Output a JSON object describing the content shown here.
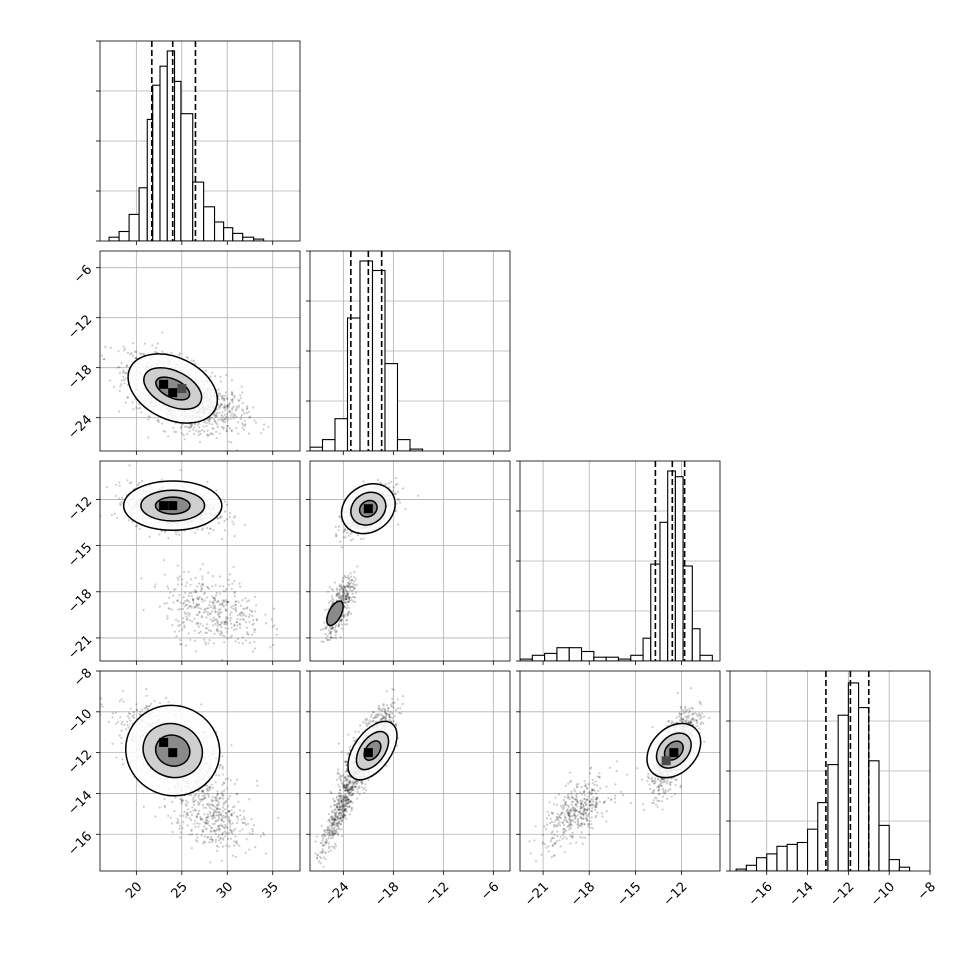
{
  "chart_data": {
    "type": "corner",
    "grid": true,
    "variables": [
      {
        "range": [
          16,
          38
        ],
        "ticks": [
          20,
          25,
          30,
          35
        ],
        "tick_labels": [
          "20",
          "25",
          "30",
          "35"
        ],
        "quantiles": [
          21.7,
          24.0,
          26.5
        ],
        "hist_peak": 100,
        "hist_bins": [
          {
            "x0": 17.0,
            "x1": 18.1,
            "count": 2
          },
          {
            "x0": 18.1,
            "x1": 19.2,
            "count": 5
          },
          {
            "x0": 19.2,
            "x1": 20.3,
            "count": 14
          },
          {
            "x0": 20.3,
            "x1": 21.2,
            "count": 28
          },
          {
            "x0": 21.2,
            "x1": 21.8,
            "count": 64
          },
          {
            "x0": 21.8,
            "x1": 22.6,
            "count": 82
          },
          {
            "x0": 22.6,
            "x1": 23.4,
            "count": 92
          },
          {
            "x0": 23.4,
            "x1": 24.2,
            "count": 100
          },
          {
            "x0": 24.2,
            "x1": 24.9,
            "count": 84
          },
          {
            "x0": 24.9,
            "x1": 26.2,
            "count": 67
          },
          {
            "x0": 26.2,
            "x1": 27.4,
            "count": 31
          },
          {
            "x0": 27.4,
            "x1": 28.6,
            "count": 18
          },
          {
            "x0": 28.6,
            "x1": 29.6,
            "count": 10
          },
          {
            "x0": 29.6,
            "x1": 30.6,
            "count": 7
          },
          {
            "x0": 30.6,
            "x1": 31.7,
            "count": 4
          },
          {
            "x0": 31.7,
            "x1": 32.9,
            "count": 2
          },
          {
            "x0": 32.9,
            "x1": 34.0,
            "count": 1
          }
        ]
      },
      {
        "range": [
          -28,
          -4
        ],
        "ticks": [
          -24,
          -18,
          -12,
          -6
        ],
        "tick_labels": [
          "−24",
          "−18",
          "−12",
          "−6"
        ],
        "quantiles": [
          -23.1,
          -21.0,
          -19.4
        ],
        "hist_peak": 100,
        "hist_bins": [
          {
            "x0": -28.0,
            "x1": -26.5,
            "count": 2
          },
          {
            "x0": -26.5,
            "x1": -25.0,
            "count": 6
          },
          {
            "x0": -25.0,
            "x1": -23.5,
            "count": 17
          },
          {
            "x0": -23.5,
            "x1": -22.0,
            "count": 70
          },
          {
            "x0": -22.0,
            "x1": -20.5,
            "count": 100
          },
          {
            "x0": -20.5,
            "x1": -19.0,
            "count": 95
          },
          {
            "x0": -19.0,
            "x1": -17.5,
            "count": 46
          },
          {
            "x0": -17.5,
            "x1": -16.0,
            "count": 6
          },
          {
            "x0": -16.0,
            "x1": -14.5,
            "count": 1
          }
        ]
      },
      {
        "range": [
          -22.5,
          -9.5
        ],
        "ticks": [
          -21,
          -18,
          -15,
          -12
        ],
        "tick_labels": [
          "−21",
          "−18",
          "−15",
          "−12"
        ],
        "quantiles": [
          -13.7,
          -12.6,
          -11.8
        ],
        "hist_peak": 100,
        "hist_bins": [
          {
            "x0": -22.5,
            "x1": -21.7,
            "count": 1
          },
          {
            "x0": -21.7,
            "x1": -20.9,
            "count": 3
          },
          {
            "x0": -20.9,
            "x1": -20.1,
            "count": 4
          },
          {
            "x0": -20.1,
            "x1": -19.3,
            "count": 7
          },
          {
            "x0": -19.3,
            "x1": -18.5,
            "count": 7
          },
          {
            "x0": -18.5,
            "x1": -17.7,
            "count": 5
          },
          {
            "x0": -17.7,
            "x1": -16.9,
            "count": 2
          },
          {
            "x0": -16.9,
            "x1": -16.1,
            "count": 2
          },
          {
            "x0": -16.1,
            "x1": -15.3,
            "count": 1
          },
          {
            "x0": -15.3,
            "x1": -14.5,
            "count": 3
          },
          {
            "x0": -14.5,
            "x1": -14.0,
            "count": 12
          },
          {
            "x0": -14.0,
            "x1": -13.4,
            "count": 51
          },
          {
            "x0": -13.4,
            "x1": -12.9,
            "count": 73
          },
          {
            "x0": -12.9,
            "x1": -12.4,
            "count": 100
          },
          {
            "x0": -12.4,
            "x1": -11.9,
            "count": 97
          },
          {
            "x0": -11.9,
            "x1": -11.3,
            "count": 50
          },
          {
            "x0": -11.3,
            "x1": -10.8,
            "count": 17
          },
          {
            "x0": -10.8,
            "x1": -10.0,
            "count": 3
          }
        ]
      },
      {
        "range": [
          -17.8,
          -8
        ],
        "ticks": [
          -16,
          -14,
          -12,
          -10,
          -8
        ],
        "tick_labels": [
          "−16",
          "−14",
          "−12",
          "−10",
          "−8"
        ],
        "quantiles": [
          -13.1,
          -11.9,
          -11.0
        ],
        "hist_peak": 100,
        "hist_bins": [
          {
            "x0": -17.5,
            "x1": -17.0,
            "count": 1
          },
          {
            "x0": -17.0,
            "x1": -16.5,
            "count": 3
          },
          {
            "x0": -16.5,
            "x1": -16.0,
            "count": 7
          },
          {
            "x0": -16.0,
            "x1": -15.5,
            "count": 9
          },
          {
            "x0": -15.5,
            "x1": -15.0,
            "count": 13
          },
          {
            "x0": -15.0,
            "x1": -14.5,
            "count": 14
          },
          {
            "x0": -14.5,
            "x1": -14.0,
            "count": 15
          },
          {
            "x0": -14.0,
            "x1": -13.5,
            "count": 22
          },
          {
            "x0": -13.5,
            "x1": -13.0,
            "count": 36
          },
          {
            "x0": -13.0,
            "x1": -12.5,
            "count": 56
          },
          {
            "x0": -12.5,
            "x1": -12.0,
            "count": 82
          },
          {
            "x0": -12.0,
            "x1": -11.5,
            "count": 99
          },
          {
            "x0": -11.5,
            "x1": -11.0,
            "count": 86
          },
          {
            "x0": -11.0,
            "x1": -10.5,
            "count": 58
          },
          {
            "x0": -10.5,
            "x1": -10.0,
            "count": 24
          },
          {
            "x0": -10.0,
            "x1": -9.5,
            "count": 6
          },
          {
            "x0": -9.5,
            "x1": -9.0,
            "count": 2
          }
        ]
      }
    ],
    "pairs": [
      {
        "row": 1,
        "col": 0,
        "clusters": [
          {
            "n": 1000,
            "mean": [
              24.0,
              -20.8
            ],
            "sd": [
              2.6,
              2.3
            ],
            "corr": -0.5
          },
          {
            "n": 400,
            "mean": [
              28.0,
              -22.6
            ],
            "sd": [
              2.2,
              1.6
            ],
            "corr": -0.4
          }
        ],
        "contours": [
          {
            "center": [
              24.0,
              -20.5
            ],
            "rx": 5.2,
            "ry": 3.7,
            "angle": -0.45
          },
          {
            "center": [
              24.0,
              -20.5
            ],
            "rx": 3.4,
            "ry": 2.1,
            "angle": -0.45
          },
          {
            "center": [
              24.0,
              -20.5
            ],
            "rx": 2.0,
            "ry": 1.1,
            "angle": -0.45
          }
        ],
        "peaks": [
          {
            "x": 23.0,
            "y": -20.0,
            "level": 3
          },
          {
            "x": 24.0,
            "y": -21.0,
            "level": 3
          },
          {
            "x": 25.0,
            "y": -20.5,
            "level": 2
          }
        ]
      },
      {
        "row": 2,
        "col": 0,
        "clusters": [
          {
            "n": 1000,
            "mean": [
              24.0,
              -12.5
            ],
            "sd": [
              2.4,
              0.7
            ],
            "corr": -0.2
          },
          {
            "n": 400,
            "mean": [
              28.5,
              -19.2
            ],
            "sd": [
              2.7,
              1.2
            ],
            "corr": -0.3
          }
        ],
        "contours": [
          {
            "center": [
              24.0,
              -12.4
            ],
            "rx": 5.4,
            "ry": 1.6,
            "angle": 0
          },
          {
            "center": [
              24.0,
              -12.4
            ],
            "rx": 3.5,
            "ry": 1.0,
            "angle": 0
          },
          {
            "center": [
              24.0,
              -12.4
            ],
            "rx": 1.9,
            "ry": 0.55,
            "angle": 0
          }
        ],
        "peaks": [
          {
            "x": 23.0,
            "y": -12.4,
            "level": 3
          },
          {
            "x": 24.0,
            "y": -12.4,
            "level": 3
          }
        ]
      },
      {
        "row": 2,
        "col": 1,
        "clusters": [
          {
            "n": 1000,
            "mean": [
              -21.0,
              -12.7
            ],
            "sd": [
              1.4,
              0.7
            ],
            "corr": 0.5
          },
          {
            "n": 400,
            "mean": [
              -24.5,
              -19.0
            ],
            "sd": [
              0.9,
              1.0
            ],
            "corr": 0.7
          }
        ],
        "contours": [
          {
            "center": [
              -21.0,
              -12.6
            ],
            "rx": 3.4,
            "ry": 1.5,
            "angle": 0.6
          },
          {
            "center": [
              -21.0,
              -12.6
            ],
            "rx": 2.2,
            "ry": 1.0,
            "angle": 0.6
          },
          {
            "center": [
              -21.0,
              -12.6
            ],
            "rx": 1.1,
            "ry": 0.5,
            "angle": 0.6
          },
          {
            "center": [
              -25.0,
              -19.4
            ],
            "rx": 1.6,
            "ry": 0.4,
            "angle": 1.1
          }
        ],
        "peaks": [
          {
            "x": -21.0,
            "y": -12.6,
            "level": 3
          }
        ]
      },
      {
        "row": 3,
        "col": 0,
        "clusters": [
          {
            "n": 1000,
            "mean": [
              24.0,
              -11.9
            ],
            "sd": [
              2.6,
              1.0
            ],
            "corr": -0.5
          },
          {
            "n": 400,
            "mean": [
              28.0,
              -15.0
            ],
            "sd": [
              2.3,
              0.9
            ],
            "corr": -0.4
          }
        ],
        "contours": [
          {
            "center": [
              24.0,
              -11.9
            ],
            "rx": 5.2,
            "ry": 2.2,
            "angle": -0.35
          },
          {
            "center": [
              24.0,
              -11.9
            ],
            "rx": 3.3,
            "ry": 1.3,
            "angle": -0.35
          },
          {
            "center": [
              24.0,
              -11.9
            ],
            "rx": 1.9,
            "ry": 0.75,
            "angle": -0.35
          }
        ],
        "peaks": [
          {
            "x": 23.0,
            "y": -11.5,
            "level": 3
          },
          {
            "x": 24.0,
            "y": -12.0,
            "level": 3
          }
        ]
      },
      {
        "row": 3,
        "col": 1,
        "clusters": [
          {
            "n": 1000,
            "mean": [
              -21.0,
              -11.9
            ],
            "sd": [
              1.5,
              1.0
            ],
            "corr": 0.75
          },
          {
            "n": 400,
            "mean": [
              -24.5,
              -15.0
            ],
            "sd": [
              1.1,
              1.0
            ],
            "corr": 0.85
          }
        ],
        "contours": [
          {
            "center": [
              -20.5,
              -11.9
            ],
            "rx": 4.0,
            "ry": 0.9,
            "angle": 0.95
          },
          {
            "center": [
              -20.5,
              -11.9
            ],
            "rx": 2.6,
            "ry": 0.6,
            "angle": 0.95
          },
          {
            "center": [
              -20.5,
              -11.9
            ],
            "rx": 1.3,
            "ry": 0.33,
            "angle": 0.95
          }
        ],
        "peaks": [
          {
            "x": -21.0,
            "y": -12.0,
            "level": 3
          }
        ]
      },
      {
        "row": 3,
        "col": 2,
        "clusters": [
          {
            "n": 1000,
            "mean": [
              -12.5,
              -11.9
            ],
            "sd": [
              0.7,
              1.0
            ],
            "corr": 0.7
          },
          {
            "n": 400,
            "mean": [
              -18.8,
              -14.9
            ],
            "sd": [
              1.1,
              0.8
            ],
            "corr": 0.6
          }
        ],
        "contours": [
          {
            "center": [
              -12.5,
              -11.9
            ],
            "rx": 2.0,
            "ry": 1.1,
            "angle": 0.8
          },
          {
            "center": [
              -12.5,
              -11.9
            ],
            "rx": 1.3,
            "ry": 0.7,
            "angle": 0.8
          },
          {
            "center": [
              -12.5,
              -11.9
            ],
            "rx": 0.7,
            "ry": 0.38,
            "angle": 0.8
          }
        ],
        "peaks": [
          {
            "x": -12.5,
            "y": -12.0,
            "level": 3
          },
          {
            "x": -13.0,
            "y": -12.4,
            "level": 2
          }
        ]
      }
    ]
  }
}
